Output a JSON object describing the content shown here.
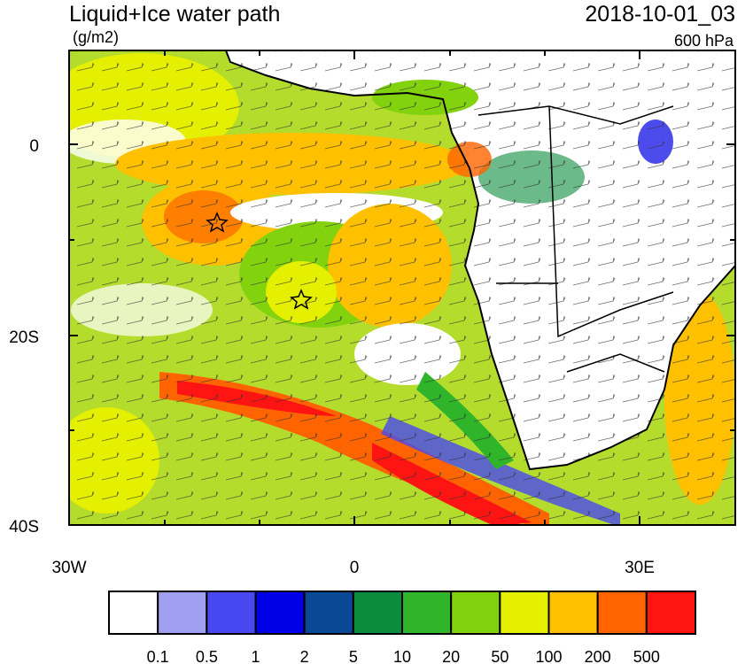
{
  "header": {
    "title": "Liquid+Ice water path",
    "units": "(g/m2)",
    "time": "2018-10-01_03",
    "level": "600 hPa"
  },
  "map": {
    "y_axis_labels": [
      "0",
      "20S",
      "40S"
    ],
    "x_axis_labels": [
      "30W",
      "0",
      "30E"
    ]
  },
  "colorbar": {
    "colors": [
      "#ffffff",
      "#a0a0f0",
      "#4848f0",
      "#0000e6",
      "#0a4896",
      "#0a8c3c",
      "#30b42a",
      "#82d20e",
      "#e4f000",
      "#ffc000",
      "#ff6400",
      "#ff1414"
    ],
    "levels": [
      0.1,
      0.5,
      1,
      2,
      5,
      10,
      20,
      50,
      100,
      200,
      500
    ]
  }
}
